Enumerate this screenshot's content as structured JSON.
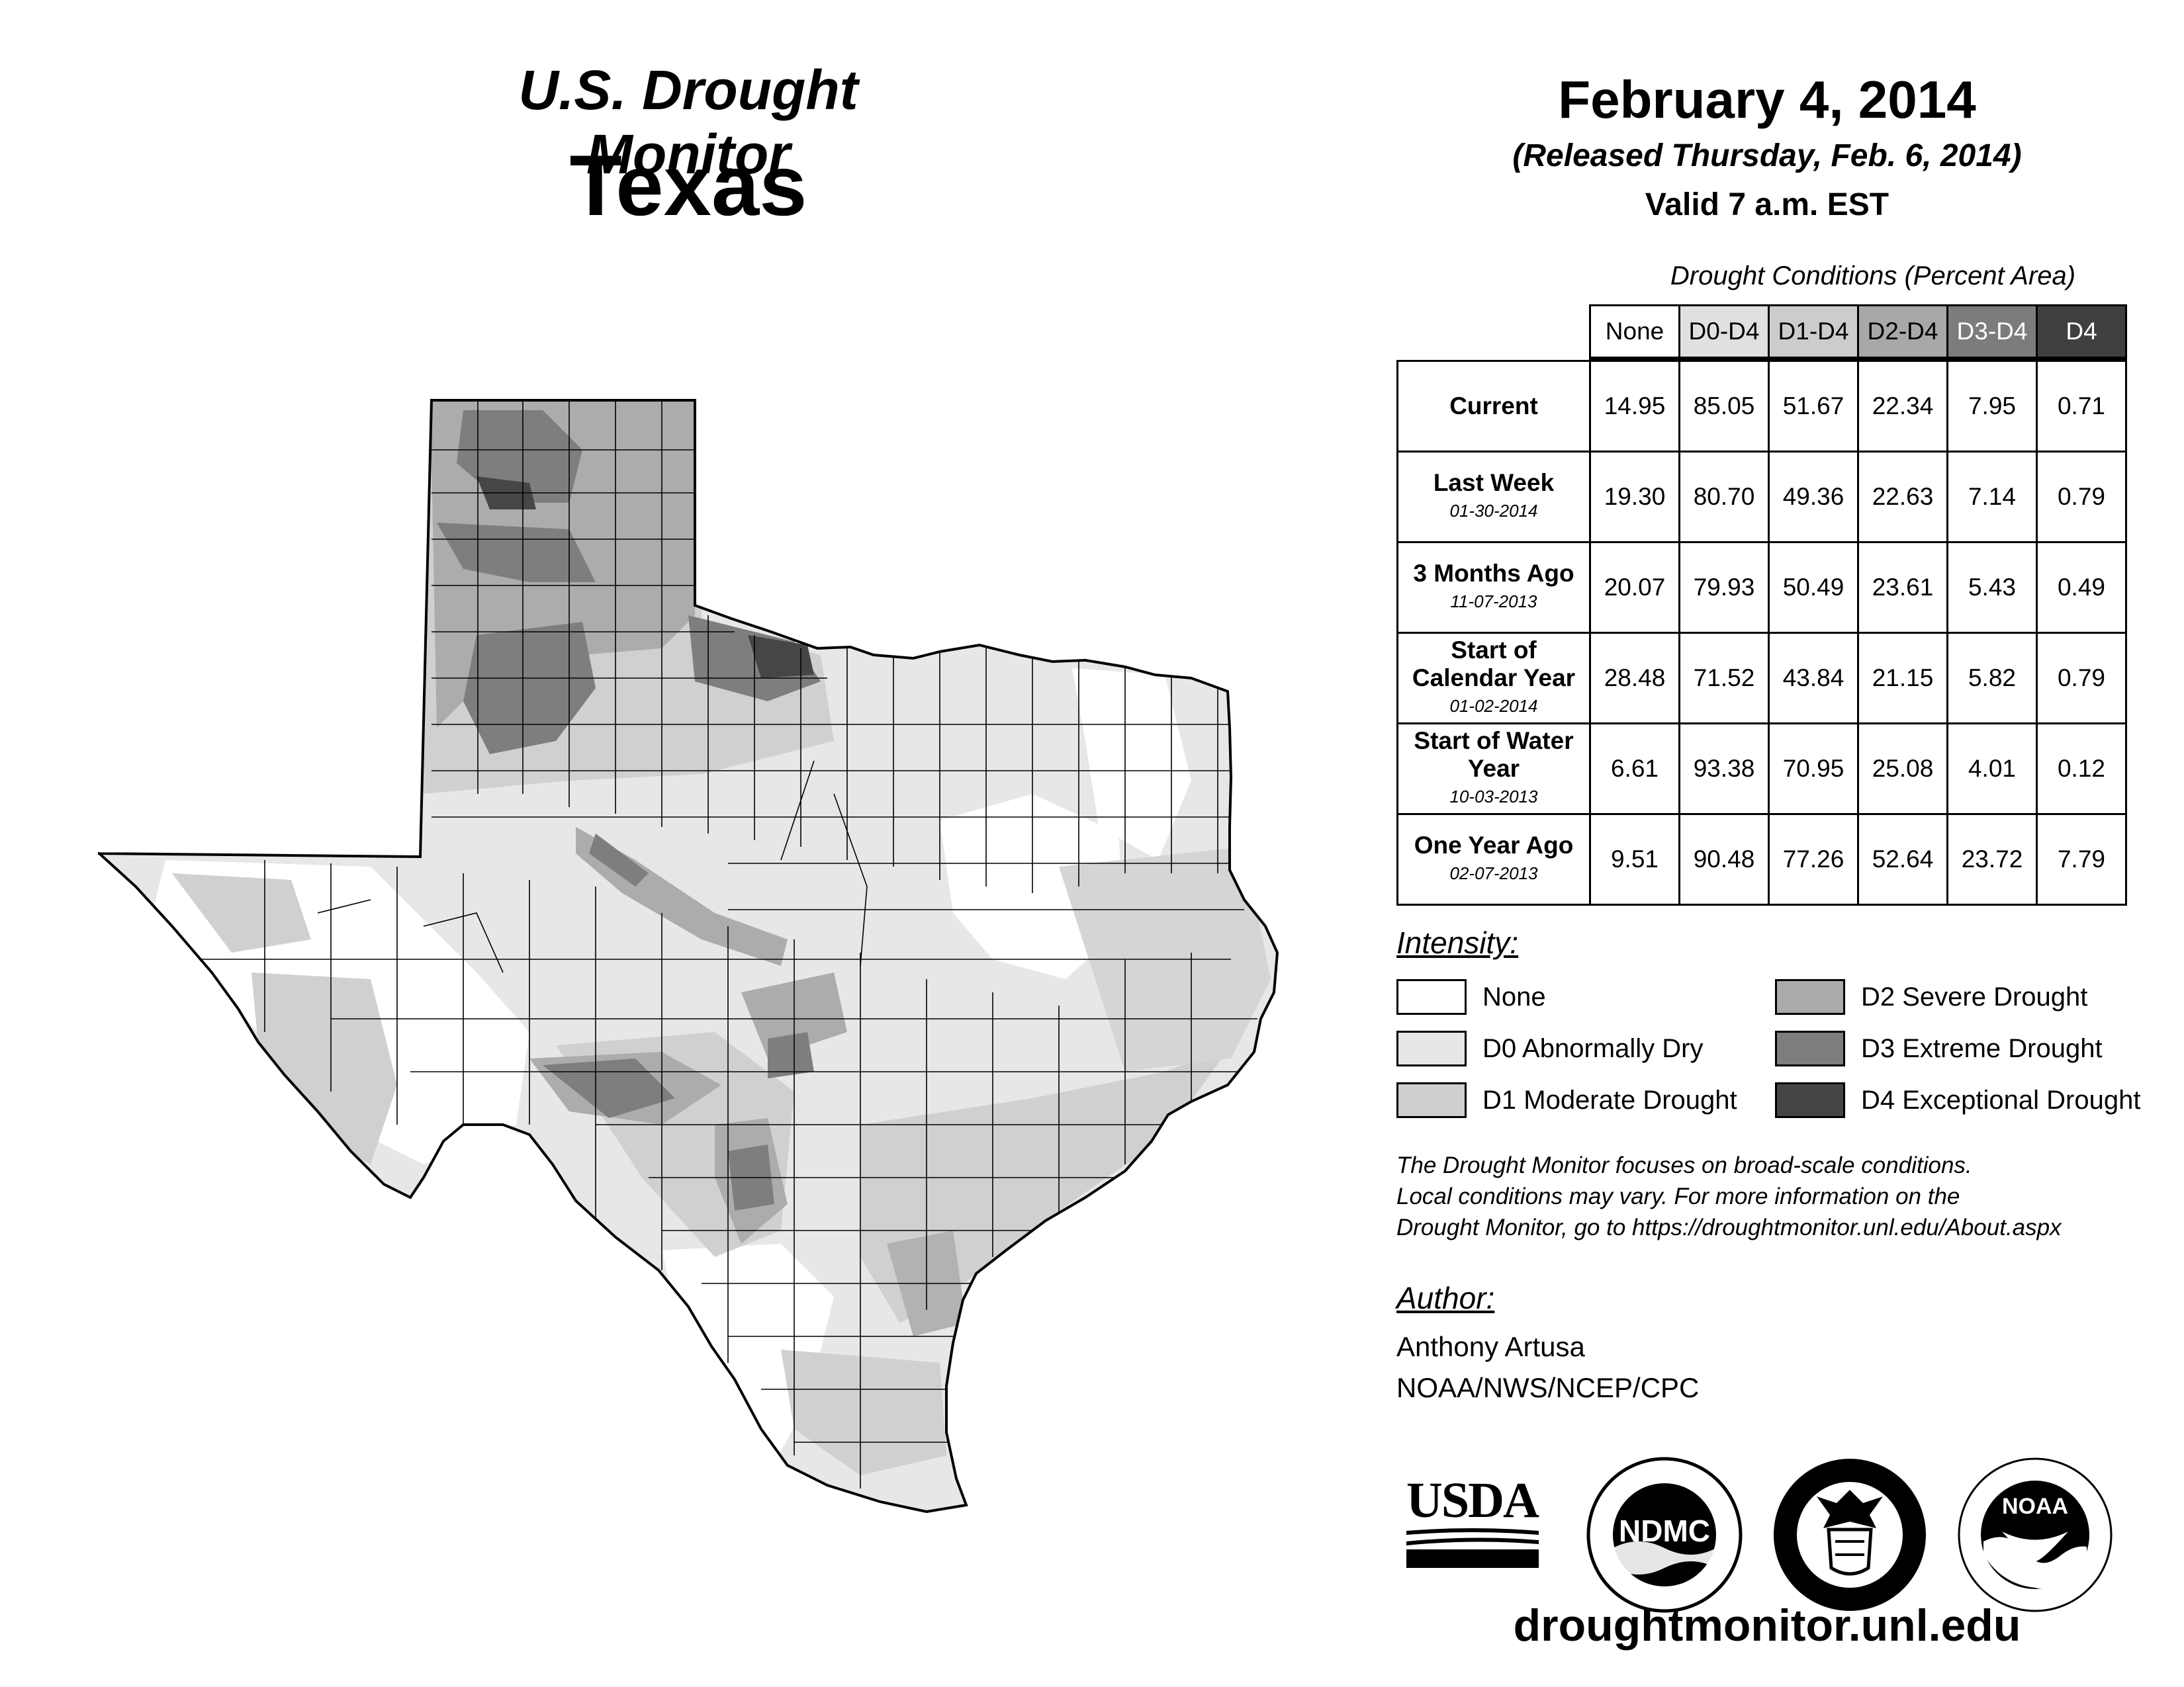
{
  "header": {
    "program": "U.S. Drought Monitor",
    "state": "Texas",
    "date": "February 4, 2014",
    "released": "(Released Thursday, Feb. 6, 2014)",
    "valid": "Valid 7 a.m. EST"
  },
  "table": {
    "title": "Drought Conditions (Percent Area)",
    "columns": [
      "None",
      "D0-D4",
      "D1-D4",
      "D2-D4",
      "D3-D4",
      "D4"
    ],
    "header_colors": [
      "#ffffff",
      "#e0e0e0",
      "#cccccc",
      "#a8a8a8",
      "#7c7c7c",
      "#404040"
    ],
    "rows": [
      {
        "label": "Current",
        "date": "",
        "values": [
          "14.95",
          "85.05",
          "51.67",
          "22.34",
          "7.95",
          "0.71"
        ]
      },
      {
        "label": "Last Week",
        "date": "01-30-2014",
        "values": [
          "19.30",
          "80.70",
          "49.36",
          "22.63",
          "7.14",
          "0.79"
        ]
      },
      {
        "label": "3 Months Ago",
        "date": "11-07-2013",
        "values": [
          "20.07",
          "79.93",
          "50.49",
          "23.61",
          "5.43",
          "0.49"
        ]
      },
      {
        "label": "Start of Calendar Year",
        "date": "01-02-2014",
        "values": [
          "28.48",
          "71.52",
          "43.84",
          "21.15",
          "5.82",
          "0.79"
        ]
      },
      {
        "label": "Start of Water Year",
        "date": "10-03-2013",
        "values": [
          "6.61",
          "93.38",
          "70.95",
          "25.08",
          "4.01",
          "0.12"
        ]
      },
      {
        "label": "One Year Ago",
        "date": "02-07-2013",
        "values": [
          "9.51",
          "90.48",
          "77.26",
          "52.64",
          "23.72",
          "7.79"
        ]
      }
    ]
  },
  "legend": {
    "title": "Intensity:",
    "items": [
      {
        "label": "None",
        "color": "#ffffff"
      },
      {
        "label": "D0 Abnormally Dry",
        "color": "#e6e6e6"
      },
      {
        "label": "D1 Moderate Drought",
        "color": "#cfcfcf"
      },
      {
        "label": "D2 Severe Drought",
        "color": "#ababab"
      },
      {
        "label": "D3 Extreme Drought",
        "color": "#7d7d7d"
      },
      {
        "label": "D4 Exceptional Drought",
        "color": "#454545"
      }
    ]
  },
  "note": {
    "line1": "The Drought Monitor focuses on broad-scale conditions.",
    "line2": "Local conditions may vary. For more information on the",
    "line3": "Drought Monitor, go to https://droughtmonitor.unl.edu/About.aspx"
  },
  "author": {
    "title": "Author:",
    "name": "Anthony Artusa",
    "org": "NOAA/NWS/NCEP/CPC"
  },
  "logos": {
    "usda": "USDA",
    "ndmc": "NDMC",
    "noaa": "NOAA"
  },
  "footer": {
    "url": "droughtmonitor.unl.edu"
  }
}
